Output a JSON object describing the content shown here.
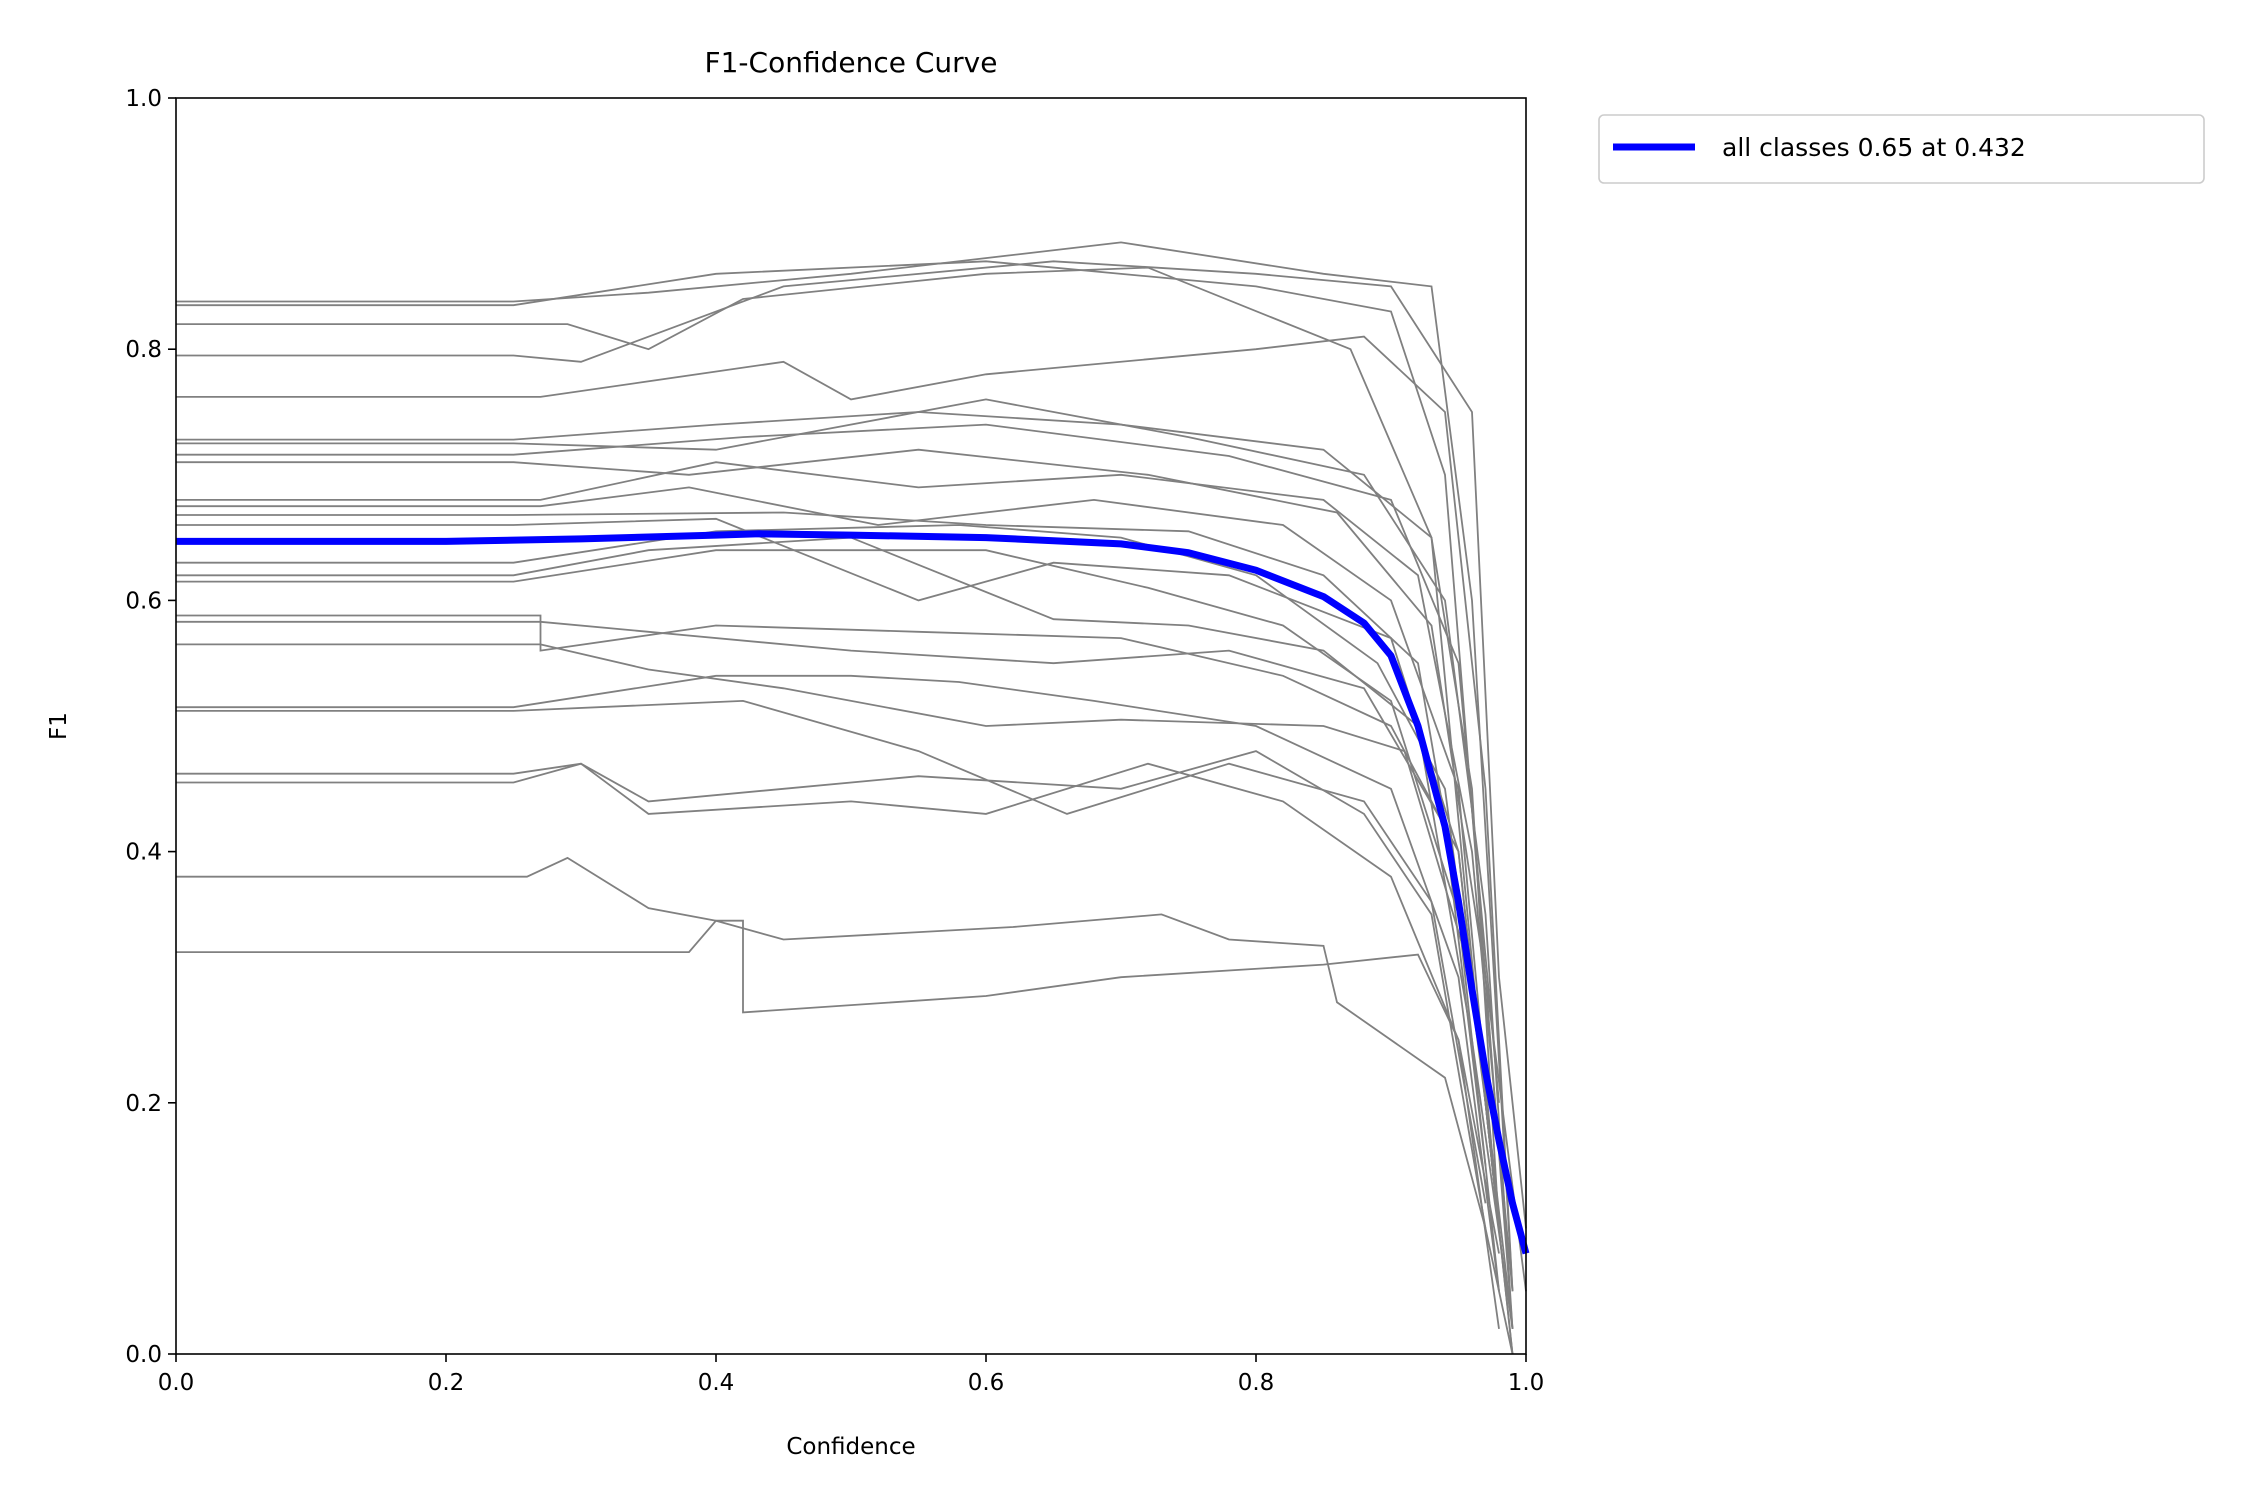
{
  "chart_data": {
    "type": "line",
    "title": "F1-Confidence Curve",
    "xlabel": "Confidence",
    "ylabel": "F1",
    "xlim": [
      0,
      1
    ],
    "ylim": [
      0,
      1
    ],
    "xticks": [
      "0.0",
      "0.2",
      "0.4",
      "0.6",
      "0.8",
      "1.0"
    ],
    "yticks": [
      "0.0",
      "0.2",
      "0.4",
      "0.6",
      "0.8",
      "1.0"
    ],
    "grid": false,
    "legend_position": "outside-top-right",
    "legend": [
      "all classes 0.65 at 0.432"
    ],
    "colors": {
      "all_classes": "#0000ff",
      "per_class": "#808080"
    },
    "all_classes": {
      "name": "all classes 0.65 at 0.432",
      "points": [
        [
          0,
          0.647
        ],
        [
          0.2,
          0.647
        ],
        [
          0.3,
          0.649
        ],
        [
          0.4,
          0.652
        ],
        [
          0.432,
          0.653
        ],
        [
          0.5,
          0.652
        ],
        [
          0.6,
          0.65
        ],
        [
          0.7,
          0.645
        ],
        [
          0.75,
          0.638
        ],
        [
          0.8,
          0.624
        ],
        [
          0.85,
          0.603
        ],
        [
          0.88,
          0.582
        ],
        [
          0.9,
          0.556
        ],
        [
          0.92,
          0.5
        ],
        [
          0.94,
          0.42
        ],
        [
          0.95,
          0.36
        ],
        [
          0.96,
          0.29
        ],
        [
          0.97,
          0.225
        ],
        [
          0.98,
          0.17
        ],
        [
          0.99,
          0.12
        ],
        [
          1.0,
          0.08
        ]
      ]
    },
    "per_class": [
      [
        [
          0,
          0.838
        ],
        [
          0.25,
          0.838
        ],
        [
          0.35,
          0.845
        ],
        [
          0.5,
          0.86
        ],
        [
          0.7,
          0.885
        ],
        [
          0.85,
          0.86
        ],
        [
          0.93,
          0.85
        ],
        [
          0.96,
          0.6
        ],
        [
          0.99,
          0.05
        ]
      ],
      [
        [
          0,
          0.835
        ],
        [
          0.25,
          0.835
        ],
        [
          0.4,
          0.86
        ],
        [
          0.6,
          0.87
        ],
        [
          0.8,
          0.85
        ],
        [
          0.9,
          0.83
        ],
        [
          0.94,
          0.7
        ],
        [
          0.97,
          0.3
        ],
        [
          0.99,
          0.02
        ]
      ],
      [
        [
          0,
          0.82
        ],
        [
          0.29,
          0.82
        ],
        [
          0.35,
          0.8
        ],
        [
          0.42,
          0.84
        ],
        [
          0.6,
          0.86
        ],
        [
          0.72,
          0.865
        ],
        [
          0.87,
          0.8
        ],
        [
          0.93,
          0.65
        ],
        [
          0.97,
          0.2
        ],
        [
          0.99,
          0
        ]
      ],
      [
        [
          0,
          0.795
        ],
        [
          0.25,
          0.795
        ],
        [
          0.3,
          0.79
        ],
        [
          0.45,
          0.85
        ],
        [
          0.65,
          0.87
        ],
        [
          0.8,
          0.86
        ],
        [
          0.9,
          0.85
        ],
        [
          0.96,
          0.75
        ],
        [
          0.98,
          0.3
        ],
        [
          1.0,
          0.1
        ]
      ],
      [
        [
          0,
          0.762
        ],
        [
          0.27,
          0.762
        ],
        [
          0.45,
          0.79
        ],
        [
          0.5,
          0.76
        ],
        [
          0.6,
          0.78
        ],
        [
          0.8,
          0.8
        ],
        [
          0.88,
          0.81
        ],
        [
          0.94,
          0.75
        ],
        [
          0.97,
          0.45
        ],
        [
          0.99,
          0.05
        ]
      ],
      [
        [
          0,
          0.728
        ],
        [
          0.25,
          0.728
        ],
        [
          0.4,
          0.74
        ],
        [
          0.55,
          0.75
        ],
        [
          0.7,
          0.74
        ],
        [
          0.85,
          0.72
        ],
        [
          0.93,
          0.65
        ],
        [
          0.96,
          0.45
        ],
        [
          0.98,
          0.1
        ]
      ],
      [
        [
          0,
          0.725
        ],
        [
          0.25,
          0.725
        ],
        [
          0.4,
          0.72
        ],
        [
          0.6,
          0.76
        ],
        [
          0.75,
          0.73
        ],
        [
          0.88,
          0.7
        ],
        [
          0.94,
          0.6
        ],
        [
          0.97,
          0.35
        ],
        [
          0.99,
          0.02
        ]
      ],
      [
        [
          0,
          0.716
        ],
        [
          0.25,
          0.716
        ],
        [
          0.42,
          0.73
        ],
        [
          0.6,
          0.74
        ],
        [
          0.78,
          0.715
        ],
        [
          0.9,
          0.68
        ],
        [
          0.95,
          0.55
        ],
        [
          0.98,
          0.2
        ]
      ],
      [
        [
          0,
          0.71
        ],
        [
          0.25,
          0.71
        ],
        [
          0.38,
          0.7
        ],
        [
          0.55,
          0.72
        ],
        [
          0.72,
          0.7
        ],
        [
          0.86,
          0.67
        ],
        [
          0.93,
          0.58
        ],
        [
          0.97,
          0.3
        ],
        [
          1.0,
          0.05
        ]
      ],
      [
        [
          0,
          0.68
        ],
        [
          0.27,
          0.68
        ],
        [
          0.4,
          0.71
        ],
        [
          0.55,
          0.69
        ],
        [
          0.7,
          0.7
        ],
        [
          0.85,
          0.68
        ],
        [
          0.92,
          0.62
        ],
        [
          0.96,
          0.4
        ],
        [
          0.99,
          0.05
        ]
      ],
      [
        [
          0,
          0.675
        ],
        [
          0.27,
          0.675
        ],
        [
          0.38,
          0.69
        ],
        [
          0.52,
          0.66
        ],
        [
          0.68,
          0.68
        ],
        [
          0.82,
          0.66
        ],
        [
          0.9,
          0.6
        ],
        [
          0.95,
          0.45
        ],
        [
          0.98,
          0.1
        ]
      ],
      [
        [
          0,
          0.668
        ],
        [
          0.25,
          0.668
        ],
        [
          0.45,
          0.67
        ],
        [
          0.6,
          0.66
        ],
        [
          0.75,
          0.655
        ],
        [
          0.85,
          0.62
        ],
        [
          0.92,
          0.55
        ],
        [
          0.96,
          0.3
        ],
        [
          0.99,
          0.02
        ]
      ],
      [
        [
          0,
          0.66
        ],
        [
          0.25,
          0.66
        ],
        [
          0.4,
          0.665
        ],
        [
          0.55,
          0.6
        ],
        [
          0.65,
          0.63
        ],
        [
          0.78,
          0.62
        ],
        [
          0.9,
          0.57
        ],
        [
          0.95,
          0.4
        ],
        [
          0.98,
          0.1
        ]
      ],
      [
        [
          0,
          0.63
        ],
        [
          0.25,
          0.63
        ],
        [
          0.4,
          0.655
        ],
        [
          0.58,
          0.66
        ],
        [
          0.7,
          0.65
        ],
        [
          0.8,
          0.62
        ],
        [
          0.89,
          0.55
        ],
        [
          0.94,
          0.45
        ],
        [
          0.97,
          0.2
        ]
      ],
      [
        [
          0,
          0.62
        ],
        [
          0.25,
          0.62
        ],
        [
          0.35,
          0.64
        ],
        [
          0.5,
          0.65
        ],
        [
          0.65,
          0.585
        ],
        [
          0.75,
          0.58
        ],
        [
          0.85,
          0.56
        ],
        [
          0.92,
          0.5
        ],
        [
          0.96,
          0.25
        ],
        [
          0.99,
          0.02
        ]
      ],
      [
        [
          0,
          0.615
        ],
        [
          0.25,
          0.615
        ],
        [
          0.4,
          0.64
        ],
        [
          0.6,
          0.64
        ],
        [
          0.72,
          0.61
        ],
        [
          0.82,
          0.58
        ],
        [
          0.9,
          0.52
        ],
        [
          0.95,
          0.35
        ],
        [
          0.98,
          0.05
        ]
      ],
      [
        [
          0,
          0.588
        ],
        [
          0.27,
          0.588
        ],
        [
          0.27,
          0.56
        ],
        [
          0.4,
          0.58
        ],
        [
          0.55,
          0.575
        ],
        [
          0.7,
          0.57
        ],
        [
          0.82,
          0.54
        ],
        [
          0.9,
          0.5
        ],
        [
          0.95,
          0.4
        ],
        [
          0.98,
          0.1
        ]
      ],
      [
        [
          0,
          0.583
        ],
        [
          0.27,
          0.583
        ],
        [
          0.35,
          0.575
        ],
        [
          0.5,
          0.56
        ],
        [
          0.65,
          0.55
        ],
        [
          0.78,
          0.56
        ],
        [
          0.88,
          0.53
        ],
        [
          0.94,
          0.42
        ],
        [
          0.97,
          0.15
        ]
      ],
      [
        [
          0,
          0.565
        ],
        [
          0.27,
          0.565
        ],
        [
          0.35,
          0.545
        ],
        [
          0.45,
          0.53
        ],
        [
          0.6,
          0.5
        ],
        [
          0.7,
          0.505
        ],
        [
          0.85,
          0.5
        ],
        [
          0.91,
          0.48
        ],
        [
          0.96,
          0.3
        ],
        [
          0.99,
          0
        ]
      ],
      [
        [
          0,
          0.515
        ],
        [
          0.25,
          0.515
        ],
        [
          0.4,
          0.54
        ],
        [
          0.5,
          0.54
        ],
        [
          0.58,
          0.535
        ],
        [
          0.68,
          0.52
        ],
        [
          0.8,
          0.5
        ],
        [
          0.9,
          0.45
        ],
        [
          0.95,
          0.3
        ],
        [
          0.98,
          0.05
        ]
      ],
      [
        [
          0,
          0.512
        ],
        [
          0.25,
          0.512
        ],
        [
          0.42,
          0.52
        ],
        [
          0.55,
          0.48
        ],
        [
          0.66,
          0.43
        ],
        [
          0.78,
          0.47
        ],
        [
          0.88,
          0.44
        ],
        [
          0.93,
          0.36
        ],
        [
          0.97,
          0.12
        ]
      ],
      [
        [
          0,
          0.462
        ],
        [
          0.25,
          0.462
        ],
        [
          0.3,
          0.47
        ],
        [
          0.35,
          0.44
        ],
        [
          0.45,
          0.45
        ],
        [
          0.55,
          0.46
        ],
        [
          0.7,
          0.45
        ],
        [
          0.8,
          0.48
        ],
        [
          0.88,
          0.43
        ],
        [
          0.93,
          0.35
        ],
        [
          0.97,
          0.1
        ]
      ],
      [
        [
          0,
          0.455
        ],
        [
          0.25,
          0.455
        ],
        [
          0.3,
          0.47
        ],
        [
          0.35,
          0.43
        ],
        [
          0.5,
          0.44
        ],
        [
          0.6,
          0.43
        ],
        [
          0.72,
          0.47
        ],
        [
          0.82,
          0.44
        ],
        [
          0.9,
          0.38
        ],
        [
          0.95,
          0.25
        ],
        [
          0.98,
          0.02
        ]
      ],
      [
        [
          0,
          0.38
        ],
        [
          0.26,
          0.38
        ],
        [
          0.29,
          0.395
        ],
        [
          0.35,
          0.355
        ],
        [
          0.4,
          0.345
        ],
        [
          0.45,
          0.33
        ],
        [
          0.62,
          0.34
        ],
        [
          0.73,
          0.35
        ],
        [
          0.78,
          0.33
        ],
        [
          0.85,
          0.325
        ],
        [
          0.86,
          0.28
        ],
        [
          0.94,
          0.22
        ],
        [
          0.97,
          0.1
        ],
        [
          0.99,
          0
        ]
      ],
      [
        [
          0,
          0.32
        ],
        [
          0.38,
          0.32
        ],
        [
          0.4,
          0.345
        ],
        [
          0.42,
          0.345
        ],
        [
          0.42,
          0.272
        ],
        [
          0.6,
          0.285
        ],
        [
          0.7,
          0.3
        ],
        [
          0.85,
          0.31
        ],
        [
          0.92,
          0.318
        ],
        [
          0.95,
          0.25
        ],
        [
          0.98,
          0.08
        ]
      ]
    ]
  }
}
